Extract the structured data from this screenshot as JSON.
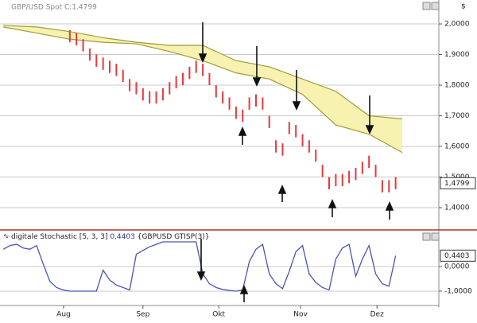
{
  "chart_data": [
    {
      "type": "range_bar",
      "title": "GBP/USD Spot C:1.4799",
      "unit": "$",
      "color": "#e8383d",
      "x": [
        0,
        1,
        2,
        3,
        4,
        5,
        6,
        7,
        8,
        9,
        10,
        11,
        12,
        13,
        14,
        15,
        16,
        17,
        18,
        19,
        20,
        21,
        22,
        23,
        24,
        25,
        26,
        27,
        28,
        29,
        30,
        31,
        32,
        33,
        34,
        35,
        36,
        37,
        38,
        39,
        40,
        41,
        42,
        43,
        44,
        45,
        46,
        47,
        48,
        49
      ],
      "high": [
        1.98,
        1.97,
        1.95,
        1.92,
        1.9,
        1.89,
        1.88,
        1.87,
        1.85,
        1.82,
        1.81,
        1.79,
        1.78,
        1.78,
        1.79,
        1.81,
        1.83,
        1.84,
        1.86,
        1.88,
        1.87,
        1.84,
        1.8,
        1.78,
        1.76,
        1.73,
        1.72,
        1.76,
        1.77,
        1.76,
        1.7,
        1.62,
        1.61,
        1.68,
        1.67,
        1.64,
        1.62,
        1.59,
        1.54,
        1.5,
        1.51,
        1.51,
        1.52,
        1.53,
        1.55,
        1.57,
        1.54,
        1.49,
        1.49,
        1.5
      ],
      "low": [
        1.94,
        1.93,
        1.91,
        1.88,
        1.86,
        1.85,
        1.84,
        1.83,
        1.81,
        1.78,
        1.77,
        1.75,
        1.74,
        1.74,
        1.75,
        1.77,
        1.79,
        1.8,
        1.82,
        1.84,
        1.83,
        1.8,
        1.76,
        1.74,
        1.72,
        1.69,
        1.68,
        1.72,
        1.73,
        1.72,
        1.66,
        1.58,
        1.57,
        1.64,
        1.63,
        1.6,
        1.58,
        1.55,
        1.5,
        1.46,
        1.47,
        1.47,
        1.48,
        1.49,
        1.51,
        1.53,
        1.5,
        1.45,
        1.45,
        1.46
      ],
      "cloud": {
        "x": [
          -10,
          -5,
          0,
          5,
          10,
          15,
          20,
          25,
          30,
          35,
          40,
          45,
          50
        ],
        "upper": [
          1.995,
          1.99,
          1.975,
          1.955,
          1.94,
          1.93,
          1.93,
          1.88,
          1.86,
          1.82,
          1.78,
          1.7,
          1.69
        ],
        "lower": [
          1.99,
          1.97,
          1.95,
          1.94,
          1.935,
          1.91,
          1.88,
          1.84,
          1.82,
          1.77,
          1.67,
          1.64,
          1.58
        ],
        "fill": "#f7f2b0",
        "stroke": "#9c9c3a"
      },
      "last": {
        "value": 1.4799,
        "label": "1,4799"
      },
      "xlim": [
        -10.5,
        55.5
      ],
      "ylim": [
        1.33,
        2.078
      ],
      "yticks": [
        {
          "value": 2,
          "label": "2,0000"
        },
        {
          "value": 1.9,
          "label": "1,9000"
        },
        {
          "value": 1.8,
          "label": "1,8000"
        },
        {
          "value": 1.7,
          "label": "1,7000"
        },
        {
          "value": 1.6,
          "label": "1,6000"
        },
        {
          "value": 1.5,
          "label": "1,5000"
        },
        {
          "value": 1.4,
          "label": "1,4000"
        }
      ],
      "grid": true
    },
    {
      "type": "line",
      "title": "digitale Stochastic [5, 3, 3]",
      "source": "{GBPUSD GTISP(3)}",
      "color": "#4a55b0",
      "x": [
        -10,
        -9,
        -8,
        -7,
        -6,
        -5,
        -4,
        -3,
        -2,
        -1,
        0,
        1,
        2,
        3,
        4,
        5,
        6,
        7,
        8,
        9,
        10,
        11,
        12,
        13,
        14,
        15,
        16,
        17,
        18,
        19,
        20,
        21,
        22,
        23,
        24,
        25,
        26,
        27,
        28,
        29,
        30,
        31,
        32,
        33,
        34,
        35,
        36,
        37,
        38,
        39,
        40,
        41,
        42,
        43,
        44,
        45,
        46,
        47,
        48,
        49
      ],
      "values": [
        0.7,
        0.85,
        0.9,
        0.75,
        0.7,
        0.85,
        0.1,
        -0.6,
        -0.85,
        -0.95,
        -1,
        -1,
        -1,
        -1,
        -1,
        -0.15,
        -0.55,
        -0.75,
        -0.85,
        -0.95,
        0.5,
        0.65,
        0.8,
        0.9,
        1,
        1,
        1,
        1,
        1,
        1,
        -0.3,
        -0.7,
        -0.85,
        -0.93,
        -0.97,
        -1,
        -0.95,
        0.2,
        0.7,
        0.9,
        -0.3,
        -0.7,
        -0.9,
        -0.2,
        0.6,
        0.85,
        -0.3,
        -0.65,
        -0.85,
        -0.95,
        0.3,
        0.75,
        0.9,
        -0.4,
        0.3,
        0.85,
        -0.3,
        -0.7,
        -0.8,
        0.4403
      ],
      "last": {
        "value": 0.4403,
        "label": "0,4403"
      },
      "xlim": [
        -10.5,
        55.5
      ],
      "ylim": [
        -1.452,
        1.387
      ],
      "yticks": [
        {
          "value": 0,
          "label": "0,0000"
        },
        {
          "value": -1,
          "label": "-1,0000"
        }
      ],
      "xticks": [
        {
          "value": -0.94,
          "label": "Aug"
        },
        {
          "value": 11,
          "label": "Sep"
        },
        {
          "value": 22.4,
          "label": "Okt"
        },
        {
          "value": 34.7,
          "label": "Nov"
        },
        {
          "value": 46.2,
          "label": "Dez"
        }
      ],
      "grid": true
    }
  ]
}
